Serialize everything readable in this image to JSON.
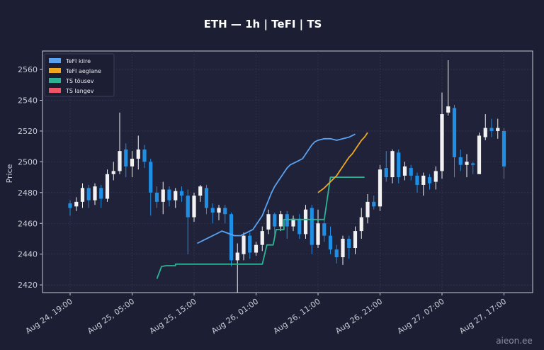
{
  "chart_data": {
    "type": "candlestick",
    "title": "ETH — 1h  |  TeFI  |  TS",
    "ylabel": "Price",
    "ylim": [
      2415,
      2572
    ],
    "yticks": [
      2420,
      2440,
      2460,
      2480,
      2500,
      2520,
      2540,
      2560
    ],
    "xticks": [
      {
        "index": 0,
        "label": "Aug 24, 19:00"
      },
      {
        "index": 10,
        "label": "Aug 25, 05:00"
      },
      {
        "index": 20,
        "label": "Aug 25, 15:00"
      },
      {
        "index": 30,
        "label": "Aug 26, 01:00"
      },
      {
        "index": 40,
        "label": "Aug 26, 11:00"
      },
      {
        "index": 50,
        "label": "Aug 26, 21:00"
      },
      {
        "index": 60,
        "label": "Aug 27, 07:00"
      },
      {
        "index": 70,
        "label": "Aug 27, 17:00"
      }
    ],
    "grid": true,
    "legend_position": "top-left",
    "legend": [
      {
        "label": "TeFI kiire",
        "color": "#5aa2f0"
      },
      {
        "label": "TeFI aeglane",
        "color": "#f0a81e"
      },
      {
        "label": "TS tõusev",
        "color": "#2bb394"
      },
      {
        "label": "TS langev",
        "color": "#ee5566"
      }
    ],
    "colors": {
      "up": "#f2f2f2",
      "down": "#1f8fe6",
      "fast": "#5aa2f0",
      "slow": "#f0a81e",
      "ts_up": "#2bb394",
      "ts_down": "#ee5566"
    },
    "candles": [
      [
        2473,
        2470,
        2475,
        2465
      ],
      [
        2471,
        2474,
        2477,
        2468
      ],
      [
        2474,
        2483,
        2486,
        2470
      ],
      [
        2483,
        2475,
        2485,
        2470
      ],
      [
        2475,
        2484,
        2486,
        2472
      ],
      [
        2483,
        2476,
        2485,
        2470
      ],
      [
        2476,
        2492,
        2495,
        2474
      ],
      [
        2492,
        2494,
        2500,
        2488
      ],
      [
        2494,
        2507,
        2532,
        2492
      ],
      [
        2508,
        2497,
        2512,
        2490
      ],
      [
        2497,
        2502,
        2507,
        2490
      ],
      [
        2502,
        2508,
        2517,
        2495
      ],
      [
        2508,
        2500,
        2511,
        2496
      ],
      [
        2500,
        2480,
        2502,
        2465
      ],
      [
        2480,
        2474,
        2484,
        2470
      ],
      [
        2474,
        2482,
        2487,
        2466
      ],
      [
        2482,
        2475,
        2484,
        2471
      ],
      [
        2475,
        2481,
        2483,
        2470
      ],
      [
        2481,
        2478,
        2484,
        2474
      ],
      [
        2478,
        2464,
        2482,
        2440
      ],
      [
        2464,
        2478,
        2480,
        2461
      ],
      [
        2478,
        2484,
        2485,
        2474
      ],
      [
        2483,
        2470,
        2485,
        2466
      ],
      [
        2470,
        2467,
        2473,
        2460
      ],
      [
        2467,
        2470,
        2472,
        2462
      ],
      [
        2470,
        2466,
        2472,
        2460
      ],
      [
        2466,
        2436,
        2467,
        2432
      ],
      [
        2436,
        2441,
        2447,
        2415
      ],
      [
        2440,
        2452,
        2454,
        2436
      ],
      [
        2452,
        2441,
        2454,
        2437
      ],
      [
        2441,
        2446,
        2448,
        2439
      ],
      [
        2446,
        2455,
        2458,
        2442
      ],
      [
        2456,
        2466,
        2469,
        2453
      ],
      [
        2466,
        2458,
        2467,
        2452
      ],
      [
        2458,
        2466,
        2468,
        2455
      ],
      [
        2466,
        2458,
        2468,
        2450
      ],
      [
        2458,
        2463,
        2465,
        2455
      ],
      [
        2463,
        2453,
        2466,
        2450
      ],
      [
        2453,
        2469,
        2472,
        2450
      ],
      [
        2470,
        2446,
        2472,
        2440
      ],
      [
        2446,
        2460,
        2469,
        2444
      ],
      [
        2460,
        2452,
        2463,
        2448
      ],
      [
        2452,
        2443,
        2458,
        2440
      ],
      [
        2443,
        2438,
        2446,
        2434
      ],
      [
        2438,
        2450,
        2452,
        2433
      ],
      [
        2450,
        2444,
        2452,
        2437
      ],
      [
        2444,
        2455,
        2458,
        2440
      ],
      [
        2455,
        2464,
        2470,
        2450
      ],
      [
        2464,
        2474,
        2479,
        2460
      ],
      [
        2474,
        2471,
        2478,
        2469
      ],
      [
        2471,
        2495,
        2498,
        2468
      ],
      [
        2496,
        2490,
        2507,
        2487
      ],
      [
        2490,
        2507,
        2508,
        2486
      ],
      [
        2506,
        2490,
        2508,
        2486
      ],
      [
        2491,
        2497,
        2500,
        2488
      ],
      [
        2496,
        2491,
        2498,
        2488
      ],
      [
        2491,
        2485,
        2493,
        2480
      ],
      [
        2485,
        2491,
        2493,
        2478
      ],
      [
        2490,
        2486,
        2492,
        2482
      ],
      [
        2487,
        2494,
        2497,
        2482
      ],
      [
        2494,
        2531,
        2545,
        2489
      ],
      [
        2532,
        2536,
        2566,
        2530
      ],
      [
        2535,
        2503,
        2537,
        2490
      ],
      [
        2503,
        2498,
        2508,
        2494
      ],
      [
        2498,
        2500,
        2505,
        2490
      ],
      [
        2499,
        2498,
        2500,
        2492
      ],
      [
        2492,
        2517,
        2519,
        2492
      ],
      [
        2516,
        2522,
        2531,
        2514
      ],
      [
        2522,
        2520,
        2528,
        2516
      ],
      [
        2520,
        2522,
        2528,
        2515
      ],
      [
        2520,
        2497,
        2522,
        2489
      ]
    ],
    "tefi_fast": [
      [
        41,
        2447
      ],
      [
        43,
        2449
      ],
      [
        45,
        2451
      ],
      [
        47,
        2453
      ],
      [
        49,
        2455
      ],
      [
        51,
        2453.5
      ],
      [
        53,
        2452
      ],
      [
        55,
        2452
      ],
      [
        57,
        2454
      ],
      [
        59,
        2456
      ],
      [
        60,
        2459
      ],
      [
        61,
        2462
      ],
      [
        62,
        2465
      ],
      [
        63,
        2470
      ],
      [
        64,
        2475
      ],
      [
        65,
        2480
      ],
      [
        66,
        2484
      ],
      [
        67,
        2487
      ],
      [
        68,
        2490
      ],
      [
        69,
        2493
      ],
      [
        70,
        2496
      ],
      [
        71,
        2498
      ],
      [
        72,
        2499
      ],
      [
        73,
        2500
      ],
      [
        75,
        2502
      ],
      [
        76,
        2505
      ],
      [
        77,
        2508
      ],
      [
        78,
        2511
      ],
      [
        79,
        2513
      ],
      [
        80,
        2514
      ],
      [
        82,
        2515
      ],
      [
        84,
        2515
      ],
      [
        86,
        2514
      ],
      [
        88,
        2515
      ],
      [
        90,
        2516
      ],
      [
        92,
        2518
      ]
    ],
    "tefi_slow": [
      [
        80,
        2480
      ],
      [
        82,
        2483
      ],
      [
        84,
        2487
      ],
      [
        86,
        2491
      ],
      [
        87,
        2494
      ],
      [
        88,
        2497
      ],
      [
        89,
        2500
      ],
      [
        90,
        2503
      ],
      [
        91,
        2505
      ],
      [
        92,
        2508
      ],
      [
        93,
        2511
      ],
      [
        94,
        2514
      ],
      [
        95,
        2516
      ],
      [
        96,
        2519
      ]
    ],
    "ts_up": [
      [
        28,
        2424
      ],
      [
        29.5,
        2432
      ],
      [
        31,
        2432.5
      ],
      [
        32,
        2432.5
      ],
      [
        33,
        2432.5
      ],
      [
        34,
        2432.5
      ],
      [
        34,
        2433.5
      ],
      [
        35,
        2433.5
      ],
      [
        61,
        2433.5
      ],
      [
        62,
        2433.5
      ],
      [
        63.5,
        2446
      ],
      [
        64.5,
        2446
      ],
      [
        65.5,
        2446
      ],
      [
        66.5,
        2456
      ],
      [
        67.5,
        2456
      ],
      [
        69,
        2456
      ],
      [
        69,
        2462.5
      ],
      [
        79,
        2462.5
      ],
      [
        80,
        2462.5
      ],
      [
        81,
        2462.5
      ],
      [
        82,
        2462.5
      ],
      [
        84,
        2490
      ],
      [
        85,
        2490
      ],
      [
        86,
        2490
      ],
      [
        95,
        2490
      ]
    ]
  },
  "watermark": "aieon.ee"
}
